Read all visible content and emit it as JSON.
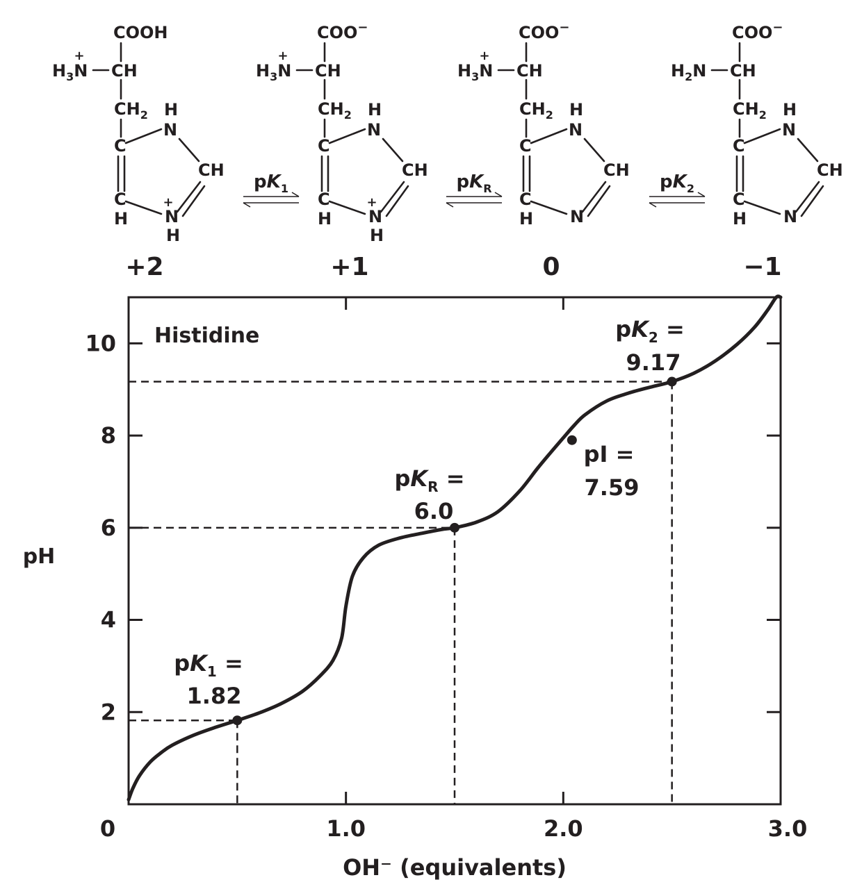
{
  "structures": [
    {
      "charge": "+2",
      "carboxyl": "COOH",
      "amino": "H3N",
      "amino_plus": true,
      "ring_plus": true,
      "ring_nh_h": "H",
      "ring_top_h": "H",
      "c_h_labels": [
        "C",
        "H",
        "CH2",
        "C",
        "C",
        "H",
        "N",
        "CH",
        "N"
      ]
    },
    {
      "charge": "+1",
      "carboxyl": "COO−",
      "amino": "H3N",
      "amino_plus": true,
      "ring_plus": true,
      "ring_nh_h": "H",
      "ring_top_h": "H"
    },
    {
      "charge": "0",
      "carboxyl": "COO−",
      "amino": "H3N",
      "amino_plus": true,
      "ring_plus": false,
      "ring_top_h": "H"
    },
    {
      "charge": "−1",
      "carboxyl": "COO−",
      "amino": "H2N",
      "amino_plus": false,
      "ring_plus": false,
      "ring_top_h": "H"
    }
  ],
  "equilibria": [
    {
      "label_p": "p",
      "label_k": "K",
      "label_sub": "1"
    },
    {
      "label_p": "p",
      "label_k": "K",
      "label_sub": "R"
    },
    {
      "label_p": "p",
      "label_k": "K",
      "label_sub": "2"
    }
  ],
  "chart_data": {
    "type": "line",
    "title": "Histidine",
    "xlabel": "OH⁻ (equivalents)",
    "ylabel": "pH",
    "xlim": [
      0,
      3.0
    ],
    "ylim": [
      0,
      11
    ],
    "xticks": [
      {
        "value": 0,
        "label": "0"
      },
      {
        "value": 1.0,
        "label": "1.0"
      },
      {
        "value": 2.0,
        "label": "2.0"
      },
      {
        "value": 3.0,
        "label": "3.0"
      }
    ],
    "yticks": [
      {
        "value": 2,
        "label": "2"
      },
      {
        "value": 4,
        "label": "4"
      },
      {
        "value": 6,
        "label": "6"
      },
      {
        "value": 8,
        "label": "8"
      },
      {
        "value": 10,
        "label": "10"
      }
    ],
    "series": [
      {
        "x": [
          0,
          0.02,
          0.05,
          0.1,
          0.15,
          0.2,
          0.3,
          0.4,
          0.5,
          0.6,
          0.7,
          0.8,
          0.88,
          0.94,
          0.98,
          1.0,
          1.03,
          1.08,
          1.15,
          1.25,
          1.35,
          1.45,
          1.5,
          1.6,
          1.7,
          1.8,
          1.88,
          1.94,
          2.0,
          2.05,
          2.1,
          2.2,
          2.3,
          2.4,
          2.5,
          2.6,
          2.7,
          2.8,
          2.88,
          2.94,
          2.98,
          3.0
        ],
        "y": [
          0.1,
          0.35,
          0.62,
          0.92,
          1.12,
          1.28,
          1.5,
          1.67,
          1.82,
          1.98,
          2.18,
          2.45,
          2.78,
          3.12,
          3.6,
          4.3,
          4.95,
          5.35,
          5.62,
          5.78,
          5.88,
          5.97,
          6.0,
          6.12,
          6.35,
          6.8,
          7.28,
          7.62,
          7.95,
          8.22,
          8.45,
          8.75,
          8.92,
          9.05,
          9.17,
          9.35,
          9.62,
          9.98,
          10.35,
          10.72,
          11.0,
          11.0
        ]
      }
    ],
    "points": [
      {
        "name": "pK1",
        "x": 0.5,
        "y": 1.82,
        "label_top": "pK1 =",
        "value_label": "1.82",
        "guide": true
      },
      {
        "name": "pKR",
        "x": 1.5,
        "y": 6.0,
        "label_top": "pKR =",
        "value_label": "6.0",
        "guide": true
      },
      {
        "name": "pI",
        "x": 2.04,
        "y": 7.9,
        "label_top": "pI =",
        "value_label": "7.59",
        "guide": false
      },
      {
        "name": "pK2",
        "x": 2.5,
        "y": 9.17,
        "label_top": "pK2 =",
        "value_label": "9.17",
        "guide": true
      }
    ],
    "annotations": {
      "pk1": {
        "p": "p",
        "k": "K",
        "sub": "1",
        "eq": " =",
        "value": "1.82"
      },
      "pkr": {
        "p": "p",
        "k": "K",
        "sub": "R",
        "eq": " =",
        "value": "6.0"
      },
      "pi": {
        "text": "pI =",
        "value": "7.59"
      },
      "pk2": {
        "p": "p",
        "k": "K",
        "sub": "2",
        "eq": " =",
        "value": "9.17"
      }
    },
    "grid": false,
    "legend": "none"
  }
}
